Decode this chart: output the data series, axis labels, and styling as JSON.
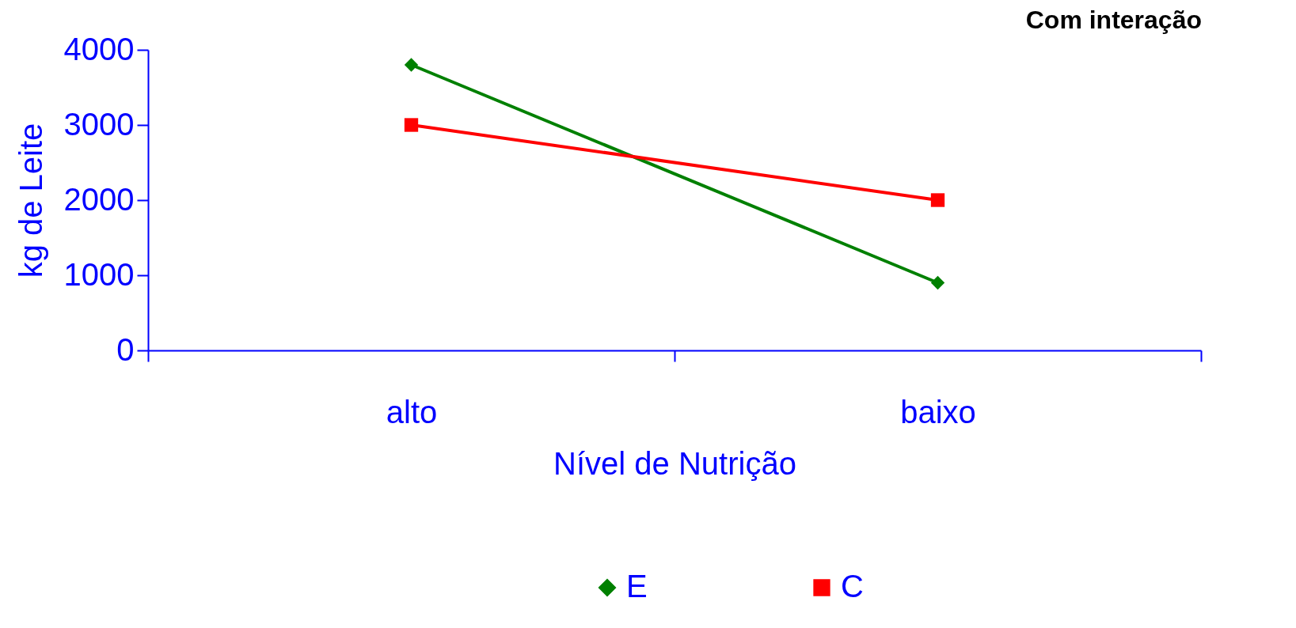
{
  "chart_data": {
    "type": "line",
    "title": "Com interação",
    "xlabel": "Nível de Nutrição",
    "ylabel": "kg de Leite",
    "categories": [
      "alto",
      "baixo"
    ],
    "series": [
      {
        "name": "E",
        "color": "#008000",
        "marker": "diamond",
        "values": [
          3800,
          900
        ]
      },
      {
        "name": "C",
        "color": "#ff0000",
        "marker": "square",
        "values": [
          3000,
          2000
        ]
      }
    ],
    "ylim": [
      0,
      4000
    ],
    "yticks": [
      0,
      1000,
      2000,
      3000,
      4000
    ],
    "grid": false,
    "legend": "bottom"
  }
}
